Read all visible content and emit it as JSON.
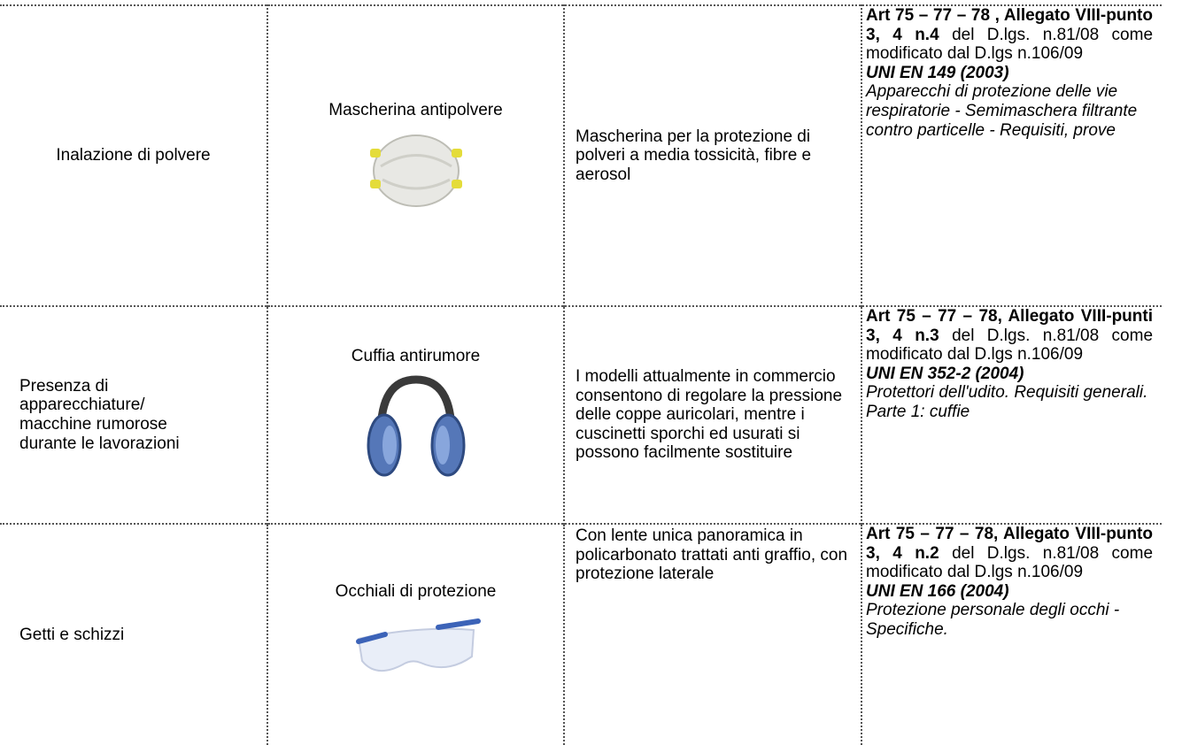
{
  "table": {
    "rows": [
      {
        "hazard": "Inalazione di polvere",
        "device": "Mascherina antipolvere",
        "description": "Mascherina per la protezione di polveri a media tossicità, fibre e aerosol",
        "reference": {
          "articles": "Art 75 – 77 – 78 , Allegato VIII-punto 3, 4 n.4",
          "law": "del D.lgs. n.81/08 come modificato dal D.lgs n.106/09",
          "standard": "UNI EN 149  (2003)",
          "standard_title": "Apparecchi di protezione delle vie respiratorie - Semimaschera filtrante contro particelle - Requisiti, prove"
        }
      },
      {
        "hazard": "Presenza di\napparecchiature/\nmacchine rumorose\ndurante le lavorazioni",
        "device": "Cuffia antirumore",
        "description": "I modelli attualmente in commercio consentono di regolare la pressione delle coppe auricolari, mentre i cuscinetti sporchi ed usurati si possono facilmente sostituire",
        "reference": {
          "articles": "Art 75 – 77 – 78, Allegato VIII-punti 3, 4 n.3",
          "law": "del D.lgs. n.81/08 come modificato dal D.lgs n.106/09",
          "standard": "UNI EN 352-2 (2004)",
          "standard_title": "Protettori dell'udito. Requisiti generali. Parte 1: cuffie"
        }
      },
      {
        "hazard": "Getti e schizzi",
        "device": "Occhiali di protezione",
        "description": "Con lente unica panoramica in policarbonato trattati anti graffio, con protezione laterale",
        "reference": {
          "articles": "Art 75 – 77 – 78, Allegato VIII-punto 3, 4 n.2",
          "law": "del D.lgs. n.81/08 come modificato dal D.lgs n.106/09",
          "standard": "UNI EN 166 (2004)",
          "standard_title": "Protezione personale degli occhi - Specifiche."
        }
      }
    ]
  }
}
